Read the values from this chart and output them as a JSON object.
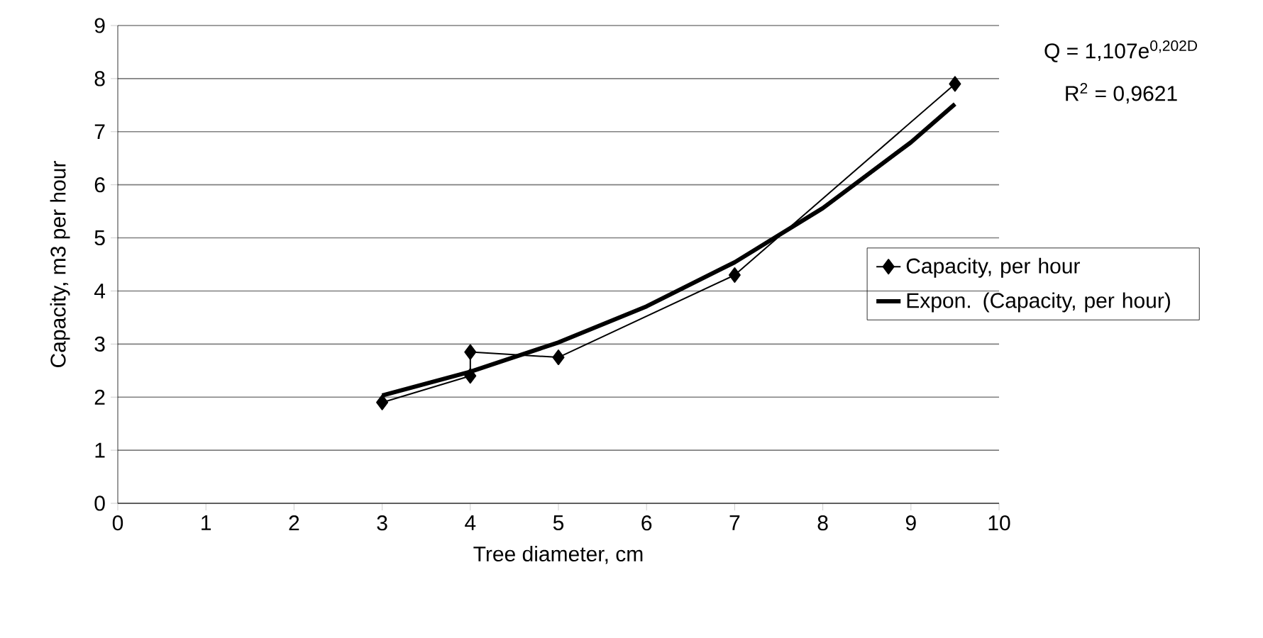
{
  "chart_data": {
    "type": "line",
    "xlabel": "Tree diameter, cm",
    "ylabel": "Capacity, m3 per hour",
    "series": [
      {
        "name": "Capacity, per hour",
        "color": "#000000",
        "marker": "diamond",
        "x": [
          3,
          4,
          4,
          5,
          7,
          9.5
        ],
        "values": [
          1.9,
          2.4,
          2.85,
          2.75,
          4.3,
          7.9
        ]
      },
      {
        "name": "Expon. (Capacity, per hour)",
        "color": "#000000",
        "marker": "none",
        "x": [
          3,
          4,
          5,
          6,
          7,
          8,
          9,
          9.5
        ],
        "values": [
          2.03,
          2.48,
          3.03,
          3.71,
          4.54,
          5.56,
          6.8,
          7.52
        ]
      }
    ],
    "annotations": [
      "Q = 1,107e$^{0,202D}$",
      "R$^{2}$ = 0,9621"
    ],
    "xlim": [
      0,
      10
    ],
    "ylim": [
      0,
      9
    ],
    "xticks": [
      0,
      1,
      2,
      3,
      4,
      5,
      6,
      7,
      8,
      9,
      10
    ],
    "yticks": [
      0,
      1,
      2,
      3,
      4,
      5,
      6,
      7,
      8,
      9
    ],
    "grid": "y",
    "legend": "right"
  }
}
